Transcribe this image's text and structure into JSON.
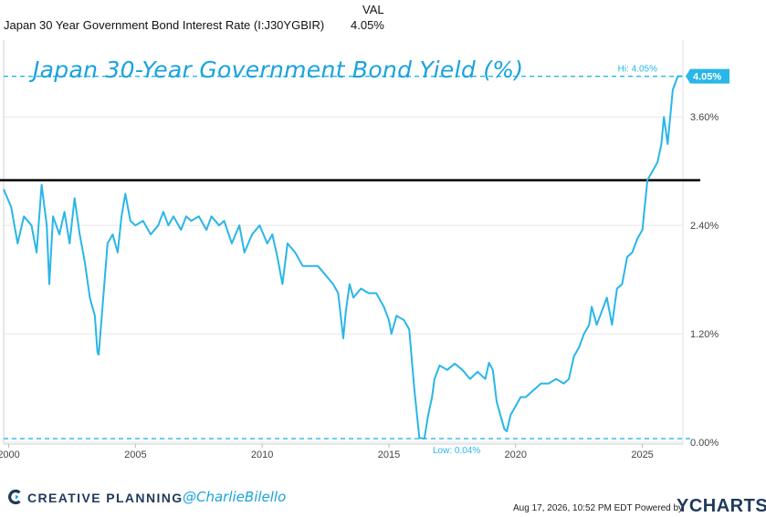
{
  "header": {
    "column_label": "VAL",
    "series_name": "Japan 30 Year Government Bond Interest Rate (I:J30YGBIR)",
    "latest_value": "4.05%"
  },
  "overlay_title": "Japan 30-Year Government Bond Yield (%)",
  "chart_data": {
    "type": "line",
    "title": "Japan 30-Year Government Bond Yield (%)",
    "xlabel": "",
    "ylabel": "",
    "xlim": [
      1999.8,
      2026.6
    ],
    "ylim": [
      -0.02,
      4.45
    ],
    "x_ticks": [
      2000,
      2005,
      2010,
      2015,
      2020,
      2025
    ],
    "x_tick_labels": [
      "2000",
      "2005",
      "2010",
      "2015",
      "2020",
      "2025"
    ],
    "y_ticks": [
      0.0,
      1.2,
      2.4,
      3.6
    ],
    "y_tick_labels": [
      "0.00%",
      "1.20%",
      "2.40%",
      "3.60%"
    ],
    "grid": "horizontal",
    "series": [
      {
        "color": "#29b6e8",
        "x": [
          1999.8,
          2000.1,
          2000.35,
          2000.6,
          2000.9,
          2001.1,
          2001.3,
          2001.5,
          2001.6,
          2001.75,
          2002.0,
          2002.2,
          2002.4,
          2002.6,
          2002.8,
          2003.0,
          2003.2,
          2003.4,
          2003.5,
          2003.55,
          2003.7,
          2003.9,
          2004.1,
          2004.3,
          2004.45,
          2004.6,
          2004.8,
          2005.0,
          2005.3,
          2005.6,
          2005.9,
          2006.1,
          2006.3,
          2006.5,
          2006.8,
          2007.0,
          2007.2,
          2007.5,
          2007.8,
          2008.0,
          2008.3,
          2008.5,
          2008.8,
          2008.95,
          2009.1,
          2009.3,
          2009.6,
          2009.9,
          2010.2,
          2010.4,
          2010.6,
          2010.8,
          2011.0,
          2011.3,
          2011.6,
          2011.9,
          2012.2,
          2012.5,
          2012.8,
          2013.0,
          2013.2,
          2013.3,
          2013.45,
          2013.6,
          2013.9,
          2014.2,
          2014.5,
          2014.8,
          2015.0,
          2015.1,
          2015.3,
          2015.6,
          2015.8,
          2016.0,
          2016.2,
          2016.4,
          2016.55,
          2016.7,
          2016.8,
          2017.0,
          2017.3,
          2017.6,
          2017.9,
          2018.2,
          2018.5,
          2018.8,
          2018.95,
          2019.1,
          2019.25,
          2019.4,
          2019.55,
          2019.65,
          2019.8,
          2020.0,
          2020.2,
          2020.4,
          2020.6,
          2020.8,
          2021.0,
          2021.3,
          2021.6,
          2021.9,
          2022.1,
          2022.3,
          2022.5,
          2022.7,
          2022.9,
          2023.0,
          2023.2,
          2023.4,
          2023.6,
          2023.8,
          2024.0,
          2024.2,
          2024.4,
          2024.6,
          2024.8,
          2025.0,
          2025.2,
          2025.4,
          2025.6,
          2025.75,
          2025.85,
          2026.0,
          2026.2,
          2026.4,
          2026.58
        ],
        "y": [
          2.8,
          2.6,
          2.2,
          2.5,
          2.4,
          2.1,
          2.85,
          2.4,
          1.75,
          2.5,
          2.3,
          2.55,
          2.2,
          2.7,
          2.3,
          2.0,
          1.6,
          1.4,
          1.0,
          0.97,
          1.5,
          2.2,
          2.3,
          2.1,
          2.5,
          2.75,
          2.45,
          2.4,
          2.45,
          2.3,
          2.4,
          2.55,
          2.4,
          2.5,
          2.35,
          2.5,
          2.45,
          2.5,
          2.35,
          2.5,
          2.4,
          2.45,
          2.2,
          2.3,
          2.4,
          2.1,
          2.3,
          2.4,
          2.2,
          2.3,
          2.05,
          1.75,
          2.2,
          2.1,
          1.95,
          1.95,
          1.95,
          1.85,
          1.75,
          1.65,
          1.15,
          1.45,
          1.75,
          1.6,
          1.7,
          1.65,
          1.65,
          1.5,
          1.35,
          1.2,
          1.4,
          1.35,
          1.25,
          0.6,
          0.05,
          0.04,
          0.3,
          0.5,
          0.7,
          0.85,
          0.8,
          0.87,
          0.8,
          0.7,
          0.78,
          0.7,
          0.88,
          0.8,
          0.45,
          0.3,
          0.15,
          0.12,
          0.3,
          0.4,
          0.5,
          0.5,
          0.55,
          0.6,
          0.65,
          0.65,
          0.7,
          0.65,
          0.7,
          0.95,
          1.05,
          1.2,
          1.3,
          1.5,
          1.3,
          1.45,
          1.6,
          1.3,
          1.7,
          1.75,
          2.05,
          2.1,
          2.25,
          2.35,
          2.9,
          3.0,
          3.1,
          3.3,
          3.6,
          3.3,
          3.9,
          4.05,
          4.05
        ]
      }
    ],
    "reference_lines": [
      {
        "y": 2.9,
        "color": "#000000",
        "style": "solid"
      },
      {
        "y": 4.05,
        "color": "#29b6e8",
        "style": "dashed",
        "label": "Hi: 4.05%"
      },
      {
        "y": 0.04,
        "color": "#29b6e8",
        "style": "dashed",
        "label": "Low: 0.04%"
      }
    ],
    "last_value_label": "4.05%"
  },
  "colors": {
    "line": "#29b6e8",
    "accent": "#1aa3dd",
    "brand": "#1f3a5a",
    "grid": "#e6e6e6"
  },
  "footer": {
    "brand": "CREATIVE PLANNING",
    "brand_mark_icon": "creative-planning-logo-icon",
    "handle": "@CharlieBilello",
    "timestamp": "Aug 17, 2026, 10:52 PM EDT Powered by",
    "ycharts": "YCHARTS"
  }
}
